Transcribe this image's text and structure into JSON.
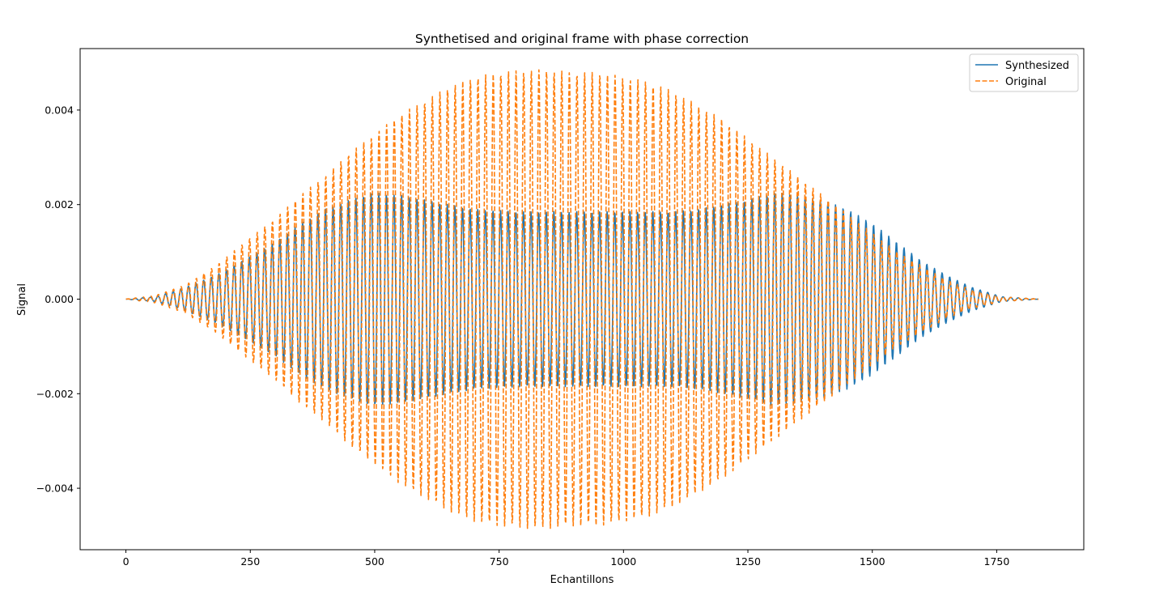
{
  "chart_data": {
    "type": "line",
    "title": "Synthetised and original frame with phase correction",
    "xlabel": "Echantillons",
    "ylabel": "Signal",
    "xlim": [
      -92,
      1925
    ],
    "ylim": [
      -0.0053,
      0.0053
    ],
    "xticks": [
      0,
      250,
      500,
      750,
      1000,
      1250,
      1500,
      1750
    ],
    "xtick_labels": [
      "0",
      "250",
      "500",
      "750",
      "1000",
      "1250",
      "1500",
      "1750"
    ],
    "yticks": [
      -0.004,
      -0.002,
      0.0,
      0.002,
      0.004
    ],
    "ytick_labels": [
      "−0.004",
      "−0.002",
      "0.000",
      "0.002",
      "0.004"
    ],
    "grid": false,
    "legend_position": "top-right",
    "n_samples": 1834,
    "period_samples": 15.3,
    "series": [
      {
        "name": "Synthesized",
        "color": "#1f77b4",
        "style": "solid",
        "envelope_x": [
          0,
          60,
          120,
          180,
          250,
          300,
          350,
          400,
          450,
          480,
          500,
          550,
          600,
          650,
          700,
          800,
          900,
          1000,
          1100,
          1150,
          1200,
          1250,
          1300,
          1350,
          1400,
          1450,
          1500,
          1550,
          1600,
          1650,
          1700,
          1760,
          1834
        ],
        "envelope_y": [
          0.0,
          5e-05,
          0.00025,
          0.0005,
          0.0009,
          0.0012,
          0.0016,
          0.0019,
          0.0021,
          0.0022,
          0.00225,
          0.0022,
          0.0021,
          0.002,
          0.0019,
          0.00185,
          0.00185,
          0.00185,
          0.00185,
          0.0019,
          0.002,
          0.0021,
          0.00225,
          0.0022,
          0.0021,
          0.0019,
          0.0016,
          0.0012,
          0.0008,
          0.0005,
          0.00025,
          5e-05,
          0.0
        ]
      },
      {
        "name": "Original",
        "color": "#ff7f0e",
        "style": "dashed",
        "envelope_x": [
          0,
          60,
          120,
          180,
          250,
          300,
          350,
          400,
          450,
          500,
          550,
          600,
          650,
          700,
          750,
          800,
          850,
          900,
          950,
          1000,
          1050,
          1100,
          1150,
          1200,
          1250,
          1300,
          1350,
          1400,
          1450,
          1500,
          1550,
          1600,
          1650,
          1700,
          1760,
          1834
        ],
        "envelope_y": [
          0.0,
          8e-05,
          0.0003,
          0.0007,
          0.0013,
          0.0017,
          0.0022,
          0.0026,
          0.0031,
          0.0035,
          0.0039,
          0.0042,
          0.0045,
          0.0047,
          0.0048,
          0.00485,
          0.00485,
          0.0048,
          0.0048,
          0.0047,
          0.0046,
          0.0044,
          0.0041,
          0.0038,
          0.0034,
          0.003,
          0.0026,
          0.0022,
          0.0018,
          0.0014,
          0.001,
          0.0007,
          0.0004,
          0.0002,
          5e-05,
          0.0
        ]
      }
    ]
  }
}
